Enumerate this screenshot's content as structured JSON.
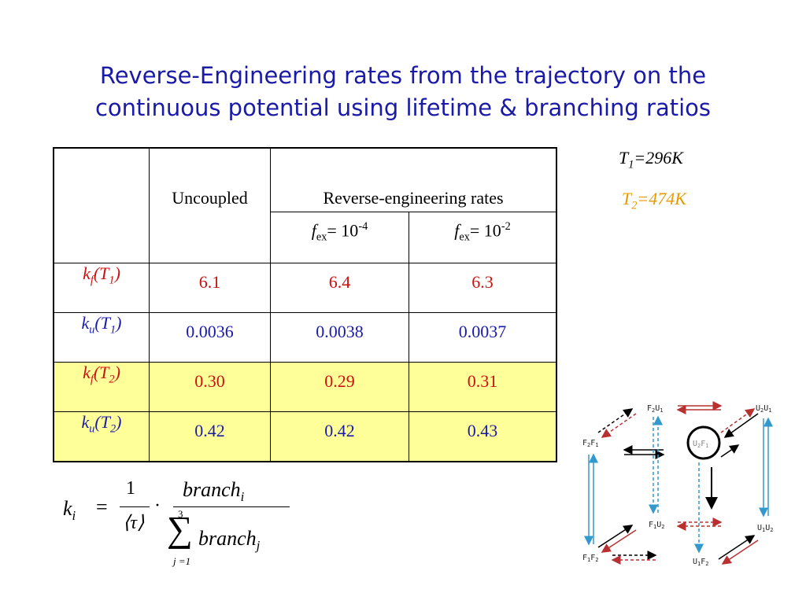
{
  "title": {
    "line1": "Reverse-Engineering rates from the trajectory on the",
    "line2": "continuous potential using lifetime & branching ratios"
  },
  "table": {
    "header": {
      "uncoupled": "Uncoupled",
      "reverse": "Reverse-engineering rates",
      "fex_var": "f",
      "fex_sub": "ex",
      "fex_eq": "= 10",
      "fex_exp_1": "-4",
      "fex_exp_2": "-2"
    },
    "rows": [
      {
        "k": "k",
        "ksub": "f",
        "T": "T",
        "Tsub": "1",
        "values": [
          "6.1",
          "6.4",
          "6.3"
        ]
      },
      {
        "k": "k",
        "ksub": "u",
        "T": "T",
        "Tsub": "1",
        "values": [
          "0.0036",
          "0.0038",
          "0.0037"
        ]
      },
      {
        "k": "k",
        "ksub": "f",
        "T": "T",
        "Tsub": "2",
        "values": [
          "0.30",
          "0.29",
          "0.31"
        ]
      },
      {
        "k": "k",
        "ksub": "u",
        "T": "T",
        "Tsub": "2",
        "values": [
          "0.42",
          "0.42",
          "0.43"
        ]
      }
    ]
  },
  "temps": {
    "t1_var": "T",
    "t1_sub": "1",
    "t1_val": "=296K",
    "t2_var": "T",
    "t2_sub": "2",
    "t2_val": "=474K",
    "t2_color": "#e69a00"
  },
  "formula": {
    "k": "k",
    "ksub": "i",
    "eq": "=",
    "one": "1",
    "tau": "⟨τ⟩",
    "dot": "·",
    "num": "branch",
    "numsub": "i",
    "sum": "∑",
    "sum_top": "3",
    "sum_bottom": "j =1",
    "den": "branch",
    "densub": "j"
  },
  "diagram": {
    "nodes": {
      "f2u1": [
        "F",
        "2",
        "U",
        "1"
      ],
      "u2u1": [
        "U",
        "2",
        "U",
        "1"
      ],
      "f2f1": [
        "F",
        "2",
        "F",
        "1"
      ],
      "u2f1": [
        "U",
        "2",
        "F",
        "1"
      ],
      "f1u2": [
        "F",
        "1",
        "U",
        "2"
      ],
      "u1u2": [
        "U",
        "1",
        "U",
        "2"
      ],
      "f1f2": [
        "F",
        "1",
        "F",
        "2"
      ],
      "u1f2": [
        "U",
        "1",
        "F",
        "2"
      ]
    },
    "colors": {
      "red": "#b83030",
      "blue": "#3399cc",
      "black": "#000000",
      "grey": "#888888"
    }
  }
}
